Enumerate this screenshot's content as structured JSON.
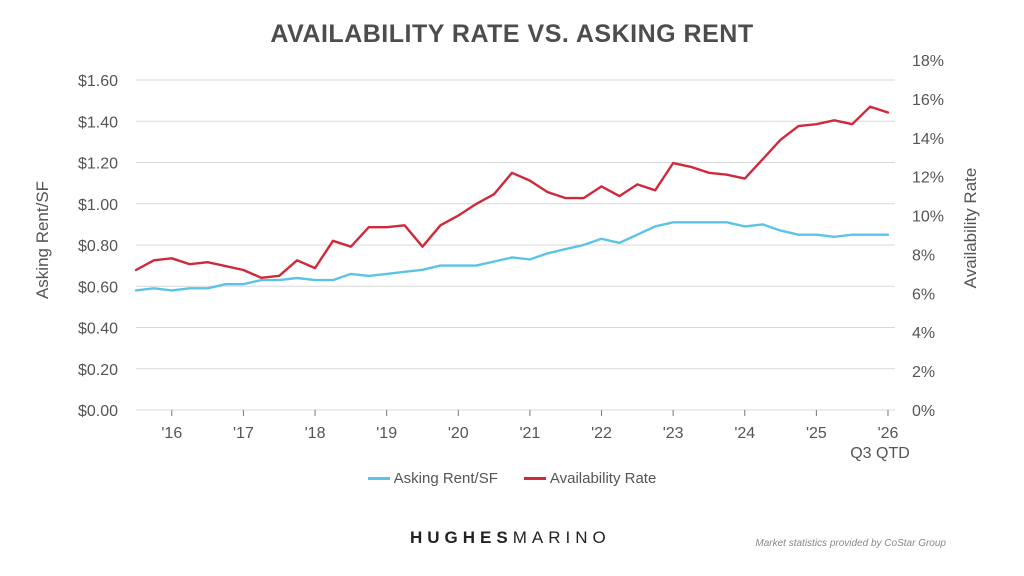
{
  "chart_data": {
    "type": "line",
    "title": "AVAILABILITY RATE VS. ASKING RENT",
    "ylabel_left": "Asking Rent/SF",
    "ylabel_right": "Availability Rate",
    "ylim_left": [
      0,
      1.6
    ],
    "ylim_right": [
      0,
      18
    ],
    "yticks_left": [
      "$0.00",
      "$0.20",
      "$0.40",
      "$0.60",
      "$0.80",
      "$1.00",
      "$1.20",
      "$1.40",
      "$1.60"
    ],
    "yticks_right": [
      "0%",
      "2%",
      "4%",
      "6%",
      "8%",
      "10%",
      "12%",
      "14%",
      "16%",
      "18%"
    ],
    "xticks": [
      "'16",
      "'17",
      "'18",
      "'19",
      "'20",
      "'21",
      "'22",
      "'23",
      "'24",
      "'25",
      "'26"
    ],
    "xtick_note": "Q3 QTD",
    "grid": "horizontal",
    "legend_position": "bottom",
    "x": [
      2015.5,
      2015.75,
      2016.0,
      2016.25,
      2016.5,
      2016.75,
      2017.0,
      2017.25,
      2017.5,
      2017.75,
      2018.0,
      2018.25,
      2018.5,
      2018.75,
      2019.0,
      2019.25,
      2019.5,
      2019.75,
      2020.0,
      2020.25,
      2020.5,
      2020.75,
      2021.0,
      2021.25,
      2021.5,
      2021.75,
      2022.0,
      2022.25,
      2022.5,
      2022.75,
      2023.0,
      2023.25,
      2023.5,
      2023.75,
      2024.0,
      2024.25,
      2024.5,
      2024.75,
      2025.0,
      2025.25,
      2025.5,
      2025.75,
      2026.0
    ],
    "series": [
      {
        "name": "Asking Rent/SF",
        "axis": "left",
        "color": "#5bc4e6",
        "values": [
          0.58,
          0.59,
          0.58,
          0.59,
          0.59,
          0.61,
          0.61,
          0.63,
          0.63,
          0.64,
          0.63,
          0.63,
          0.66,
          0.65,
          0.66,
          0.67,
          0.68,
          0.7,
          0.7,
          0.7,
          0.72,
          0.74,
          0.73,
          0.76,
          0.78,
          0.8,
          0.83,
          0.81,
          0.85,
          0.89,
          0.91,
          0.91,
          0.91,
          0.91,
          0.89,
          0.9,
          0.87,
          0.85,
          0.85,
          0.84,
          0.85,
          0.85,
          0.85
        ]
      },
      {
        "name": "Availability Rate",
        "axis": "right",
        "color": "#cf2a3c",
        "values": [
          7.2,
          7.7,
          7.8,
          7.5,
          7.6,
          7.4,
          7.2,
          6.8,
          6.9,
          7.7,
          7.3,
          8.7,
          8.4,
          9.4,
          9.4,
          9.5,
          8.4,
          9.5,
          10.0,
          10.6,
          11.1,
          12.2,
          11.8,
          11.2,
          10.9,
          10.9,
          11.5,
          11.0,
          11.6,
          11.3,
          12.7,
          12.5,
          12.2,
          12.1,
          11.9,
          12.9,
          13.9,
          14.6,
          14.7,
          14.9,
          14.7,
          15.6,
          15.3
        ]
      }
    ]
  },
  "brand": {
    "bold": "HUGHES",
    "light": "MARINO"
  },
  "source_note": "Market statistics provided by CoStar Group"
}
